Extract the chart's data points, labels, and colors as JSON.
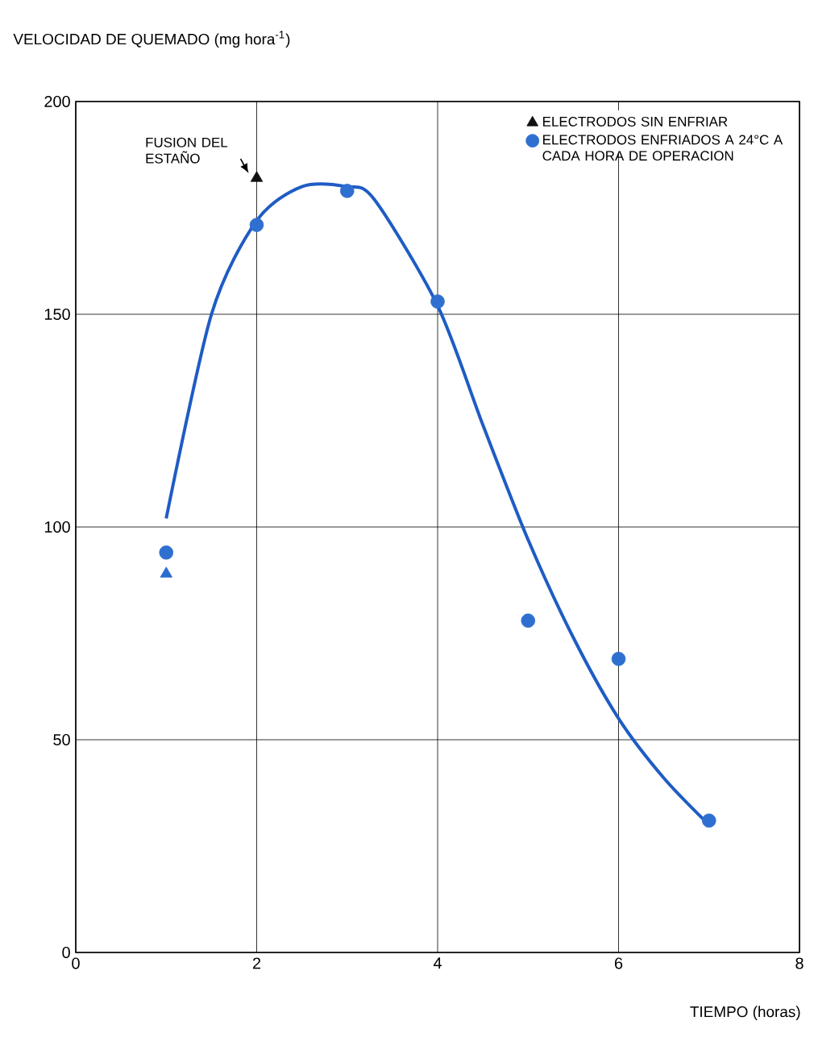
{
  "chart_data": {
    "type": "scatter",
    "ylabel": "VELOCIDAD DE QUEMADO (mg hora$^{-1}$)",
    "xlabel": "TIEMPO (horas)",
    "xlim": [
      0,
      8
    ],
    "xticks": [
      0,
      2,
      4,
      6,
      8
    ],
    "ylim": [
      0,
      200
    ],
    "yticks": [
      0,
      50,
      100,
      150,
      200
    ],
    "grid": true,
    "legend": "top right",
    "series": [
      {
        "name": "ELECTRODOS SIN ENFRIAR",
        "type": "scatter",
        "marker": "triangle",
        "color": "#111111",
        "colors": [
          "#2a6bd0",
          "#111111"
        ],
        "x": [
          1,
          2
        ],
        "values": [
          89,
          182
        ]
      },
      {
        "name": "ELECTRODOS ENFRIADOS A 24°C A CADA HORA DE OPERACION",
        "type": "scatter",
        "marker": "circle",
        "color": "#2f6fd0",
        "x": [
          1,
          2,
          3,
          4,
          5,
          6,
          7
        ],
        "values": [
          94,
          171,
          179,
          153,
          78,
          69,
          31
        ]
      },
      {
        "type": "line",
        "color": "#1f5cc4",
        "marker": "none",
        "line_style": "solid",
        "x": [
          1,
          1.5,
          2,
          2.5,
          3,
          3.3,
          4,
          4.5,
          5,
          5.5,
          6,
          6.5,
          7
        ],
        "values": [
          102,
          150,
          172,
          180,
          180,
          177,
          152,
          124,
          97,
          74,
          55,
          41,
          30
        ]
      }
    ],
    "annotations": [
      {
        "text": "FUSION DEL ESTAÑO",
        "x": 2,
        "y": 182
      }
    ]
  }
}
